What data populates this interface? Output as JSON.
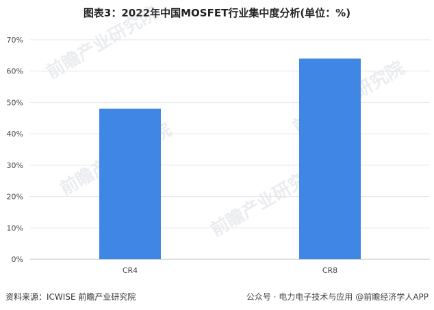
{
  "title": "图表3：2022年中国MOSFET行业集中度分析(单位：%)",
  "source": "资料来源：ICWISE 前瞻产业研究院",
  "watermark": {
    "text": "前瞻产业研究院",
    "footer": "公众号 · 电力电子技术与应用",
    "footer_badge": "@前瞻经济学人APP"
  },
  "chart_data": {
    "type": "bar",
    "categories": [
      "CR4",
      "CR8"
    ],
    "values": [
      48,
      64
    ],
    "ylim": [
      0,
      70
    ],
    "yticks": [
      0,
      10,
      20,
      30,
      40,
      50,
      60,
      70
    ],
    "ytick_suffix": "%",
    "bar_color": "#3f86e5",
    "grid": true
  }
}
